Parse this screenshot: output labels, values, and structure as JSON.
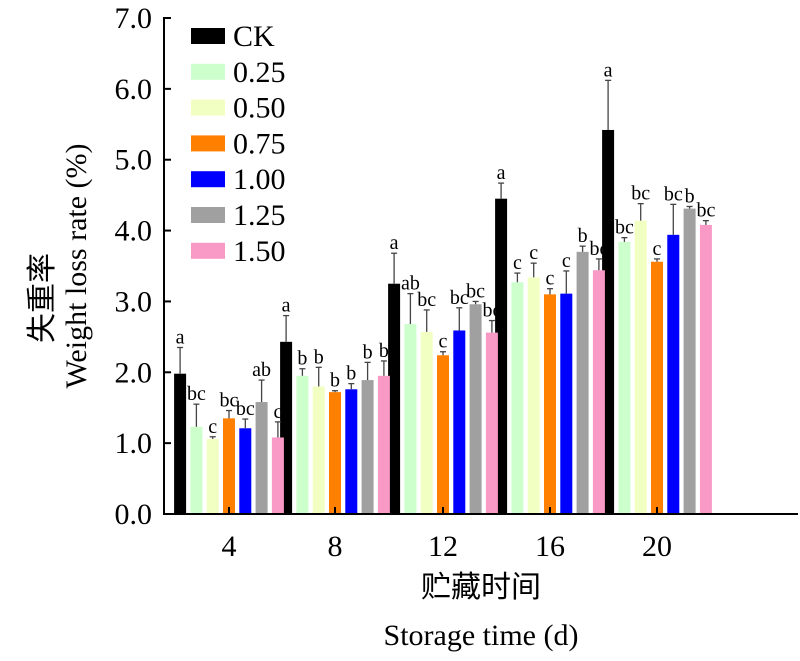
{
  "chart_data": {
    "type": "bar",
    "title": "",
    "xlabel_cn": "贮藏时间",
    "xlabel": "Storage time (d)",
    "ylabel_cn": "失重率",
    "ylabel": "Weight loss rate (%)",
    "ylim": [
      0,
      7.0
    ],
    "yticks": [
      "0.0",
      "1.0",
      "2.0",
      "3.0",
      "4.0",
      "5.0",
      "6.0",
      "7.0"
    ],
    "categories": [
      "4",
      "8",
      "12",
      "16",
      "20"
    ],
    "legend_position": "top-left",
    "grid": false,
    "series": [
      {
        "name": "CK",
        "color": "#000000",
        "values": [
          1.98,
          2.43,
          3.25,
          4.45,
          5.42
        ],
        "errors": [
          0.37,
          0.37,
          0.43,
          0.22,
          0.7
        ],
        "letters": [
          "a",
          "a",
          "a",
          "a",
          "a"
        ]
      },
      {
        "name": "0.25",
        "color": "#ccffcc",
        "values": [
          1.23,
          1.95,
          2.68,
          3.27,
          3.84
        ],
        "errors": [
          0.32,
          0.1,
          0.43,
          0.13,
          0.06
        ],
        "letters": [
          "bc",
          "b",
          "ab",
          "c",
          "bc"
        ]
      },
      {
        "name": "0.50",
        "color": "#f2ffc2",
        "values": [
          1.06,
          1.8,
          2.57,
          3.34,
          4.14
        ],
        "errors": [
          0.03,
          0.27,
          0.31,
          0.2,
          0.24
        ],
        "letters": [
          "c",
          "b",
          "bc",
          "c",
          "bc"
        ]
      },
      {
        "name": "0.75",
        "color": "#ff7f00",
        "values": [
          1.35,
          1.72,
          2.24,
          3.1,
          3.56
        ],
        "errors": [
          0.11,
          0.02,
          0.05,
          0.08,
          0.04
        ],
        "letters": [
          "bc",
          "b",
          "c",
          "c",
          "c"
        ]
      },
      {
        "name": "1.00",
        "color": "#0000ff",
        "values": [
          1.21,
          1.76,
          2.59,
          3.11,
          3.94
        ],
        "errors": [
          0.13,
          0.08,
          0.32,
          0.32,
          0.43
        ],
        "letters": [
          "bc",
          "b",
          "bc",
          "c",
          "bc"
        ]
      },
      {
        "name": "1.25",
        "color": "#a0a0a0",
        "values": [
          1.58,
          1.89,
          2.96,
          3.7,
          4.31
        ],
        "errors": [
          0.31,
          0.25,
          0.04,
          0.08,
          0.03
        ],
        "letters": [
          "ab",
          "b",
          "bc",
          "b",
          "b"
        ]
      },
      {
        "name": "1.50",
        "color": "#f999c5",
        "values": [
          1.08,
          1.95,
          2.56,
          3.44,
          4.08
        ],
        "errors": [
          0.22,
          0.21,
          0.17,
          0.16,
          0.06
        ],
        "letters": [
          "c",
          "b",
          "bc",
          "bc",
          "bc"
        ]
      }
    ]
  }
}
